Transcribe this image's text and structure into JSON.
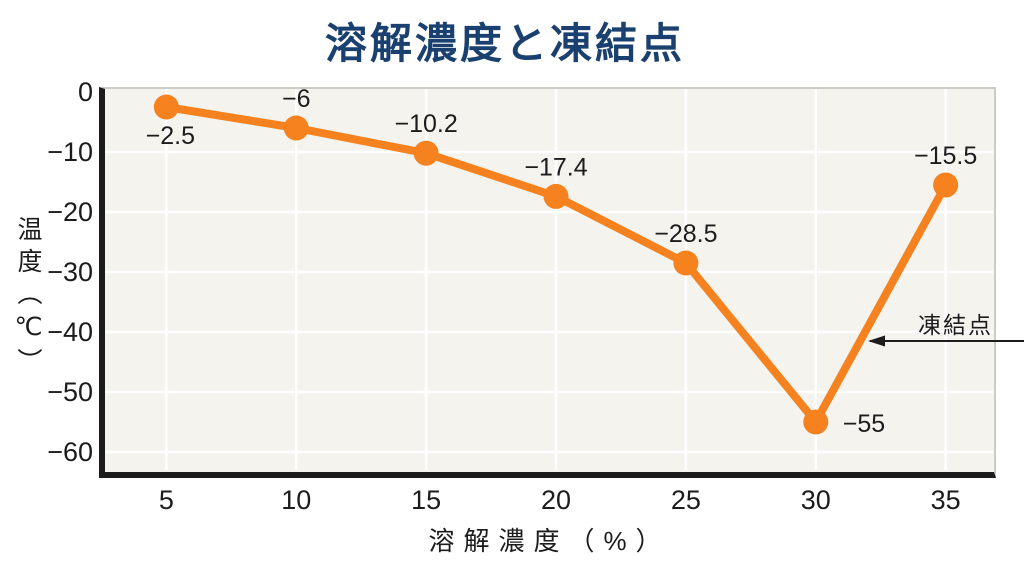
{
  "title": "溶解濃度と凍結点",
  "colors": {
    "line": "#F5821F",
    "title": "#1A4070",
    "grid": "#FFFFFF",
    "plot_background": "#F4F3EE",
    "axis": "#1C1C1C",
    "text": "#1C1C1C"
  },
  "chart_data": {
    "type": "line",
    "title": "溶解濃度と凍結点",
    "xlabel": "溶解濃度（%）",
    "ylabel": "温度（℃）",
    "x": [
      5,
      10,
      15,
      20,
      25,
      30,
      35
    ],
    "x_tick_labels": [
      "5",
      "10",
      "15",
      "20",
      "25",
      "30",
      "35"
    ],
    "y_ticks": [
      0,
      -10,
      -20,
      -30,
      -40,
      -50,
      -60
    ],
    "y_tick_labels": [
      "0",
      "−10",
      "−20",
      "−30",
      "−40",
      "−50",
      "−60"
    ],
    "xlim": [
      2.6,
      36.9
    ],
    "ylim": [
      0,
      -65
    ],
    "grid": true,
    "legend": "none",
    "series": [
      {
        "name": "凍結点",
        "color": "#F5821F",
        "values": [
          -2.5,
          -6,
          -10.2,
          -17.4,
          -28.5,
          -55,
          -15.5
        ],
        "point_labels": [
          "−2.5",
          "−6",
          "−10.2",
          "−17.4",
          "−28.5",
          "−55",
          "−15.5"
        ],
        "label_positions": [
          "below",
          "above",
          "above",
          "above",
          "above",
          "right",
          "above"
        ]
      }
    ],
    "annotation": {
      "text": "凍結点",
      "arrow_direction": "left",
      "arrow_y_value": -41.5
    }
  }
}
